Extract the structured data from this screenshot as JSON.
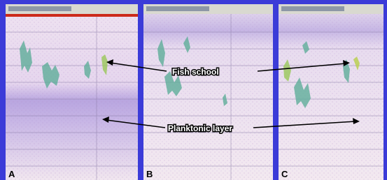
{
  "panels": [
    {
      "label": "A"
    },
    {
      "label": "B"
    },
    {
      "label": "C"
    }
  ],
  "annotations": {
    "fish_school": "Fish school",
    "planktonic_layer": "Planktonic layer"
  }
}
